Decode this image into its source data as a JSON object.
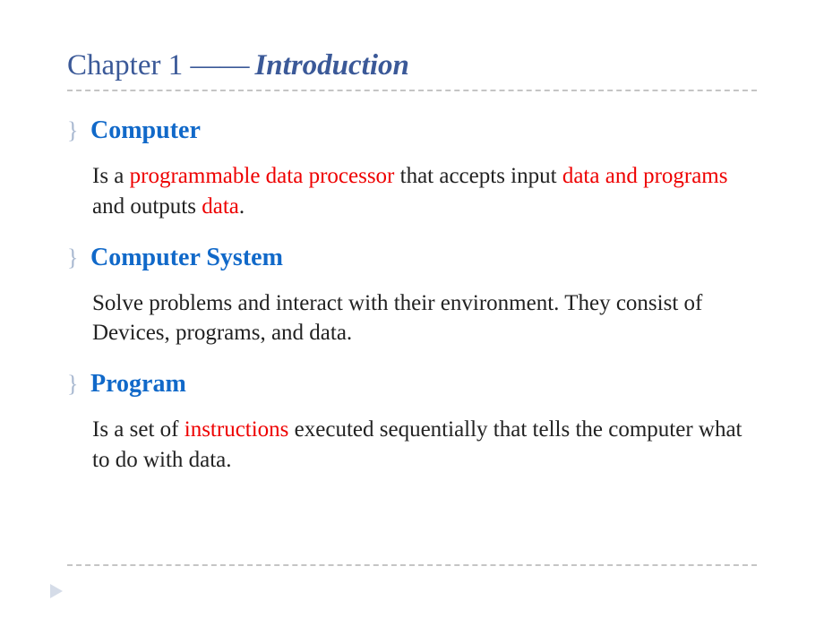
{
  "title": {
    "chapter": "Chapter 1 ——",
    "intro": "Introduction"
  },
  "colors": {
    "title": "#3b5998",
    "section_heading": "#1169c9",
    "highlight": "#ee0000",
    "body": "#222222",
    "bullet": "#a8b8d0",
    "divider": "#c5c5c5",
    "arrow": "#d5dce8",
    "background": "#ffffff"
  },
  "typography": {
    "title_fontsize": 33,
    "section_fontsize": 28,
    "body_fontsize": 25,
    "font_family": "Georgia"
  },
  "sections": [
    {
      "bullet": "}",
      "heading": "Computer",
      "body_parts": [
        {
          "text": "Is a ",
          "hl": false
        },
        {
          "text": "programmable data processor",
          "hl": true
        },
        {
          "text": " that accepts input ",
          "hl": false
        },
        {
          "text": "data and programs",
          "hl": true
        },
        {
          "text": " and outputs ",
          "hl": false
        },
        {
          "text": "data",
          "hl": true
        },
        {
          "text": ".",
          "hl": false
        }
      ]
    },
    {
      "bullet": "}",
      "heading": "Computer System",
      "body_parts": [
        {
          "text": "Solve problems and interact with their environment. They consist of Devices, programs, and data.",
          "hl": false
        }
      ]
    },
    {
      "bullet": "}",
      "heading": "Program",
      "body_parts": [
        {
          "text": "Is a set of ",
          "hl": false
        },
        {
          "text": "instructions",
          "hl": true
        },
        {
          "text": " executed sequentially that tells the computer what to do with data.",
          "hl": false
        }
      ]
    }
  ]
}
